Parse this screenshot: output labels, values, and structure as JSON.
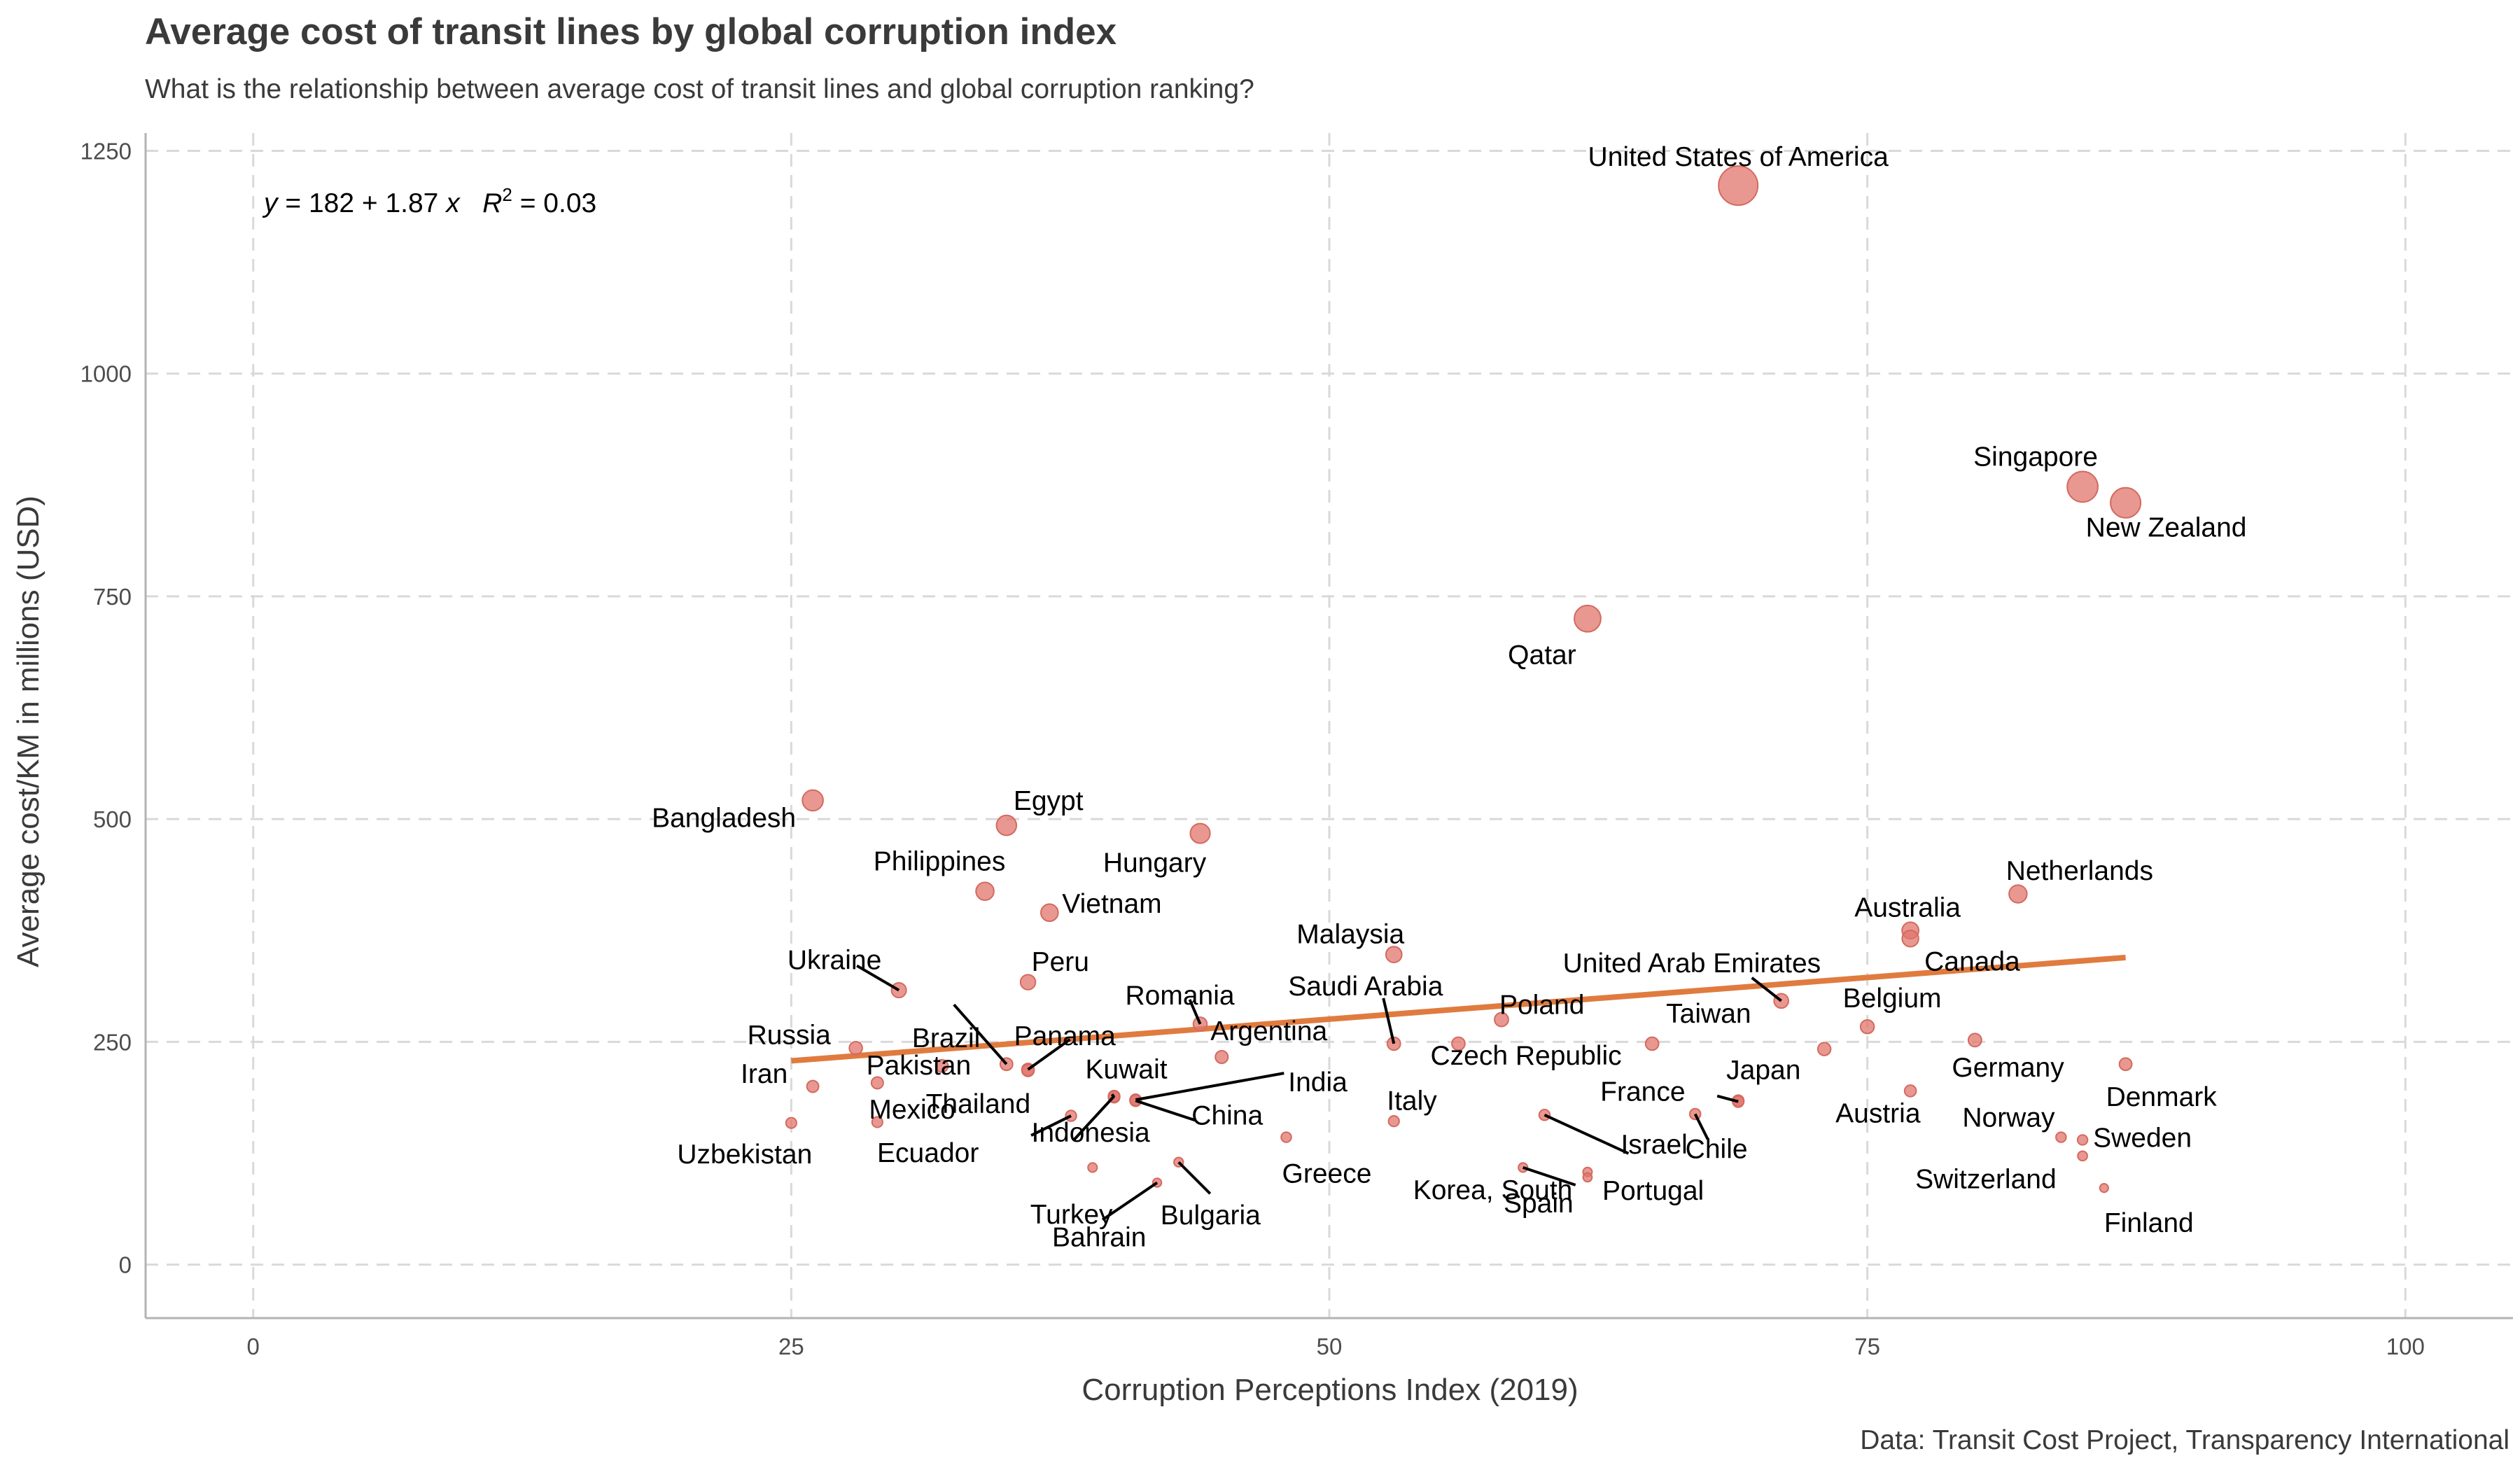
{
  "title": "Average cost of transit lines by global corruption index",
  "subtitle": "What is the relationship between average cost of transit lines and global corruption ranking?",
  "caption": "Data: Transit Cost Project, Transparency International",
  "equation": {
    "y": "y",
    "equals": " = 182 + 1.87 ",
    "x": "x",
    "r2": "R",
    "sup": "2",
    "r2_value": " = 0.03"
  },
  "chart_data": {
    "type": "scatter",
    "xlabel": "Corruption Perceptions Index (2019)",
    "ylabel": "Average cost/KM in millions (USD)",
    "xlim": [
      -5,
      105
    ],
    "ylim": [
      -60,
      1270
    ],
    "xticks": [
      0,
      25,
      50,
      75,
      100
    ],
    "yticks": [
      0,
      250,
      500,
      750,
      1000,
      1250
    ],
    "grid": true,
    "colors": {
      "points": "#e0756b",
      "trend": "#e07b3f",
      "grid": "#d9d9d9",
      "axis": "#b3b3b3"
    },
    "trendline": {
      "intercept": 182,
      "slope": 1.87,
      "x_range": [
        25,
        87
      ]
    },
    "points": [
      {
        "name": "United States of America",
        "x": 69,
        "y": 1211
      },
      {
        "name": "Singapore",
        "x": 85,
        "y": 873
      },
      {
        "name": "New Zealand",
        "x": 87,
        "y": 855
      },
      {
        "name": "Qatar",
        "x": 62,
        "y": 725
      },
      {
        "name": "Bangladesh",
        "x": 26,
        "y": 521
      },
      {
        "name": "Egypt",
        "x": 35,
        "y": 493
      },
      {
        "name": "Hungary",
        "x": 44,
        "y": 484
      },
      {
        "name": "Philippines",
        "x": 34,
        "y": 419
      },
      {
        "name": "Vietnam",
        "x": 37,
        "y": 395
      },
      {
        "name": "Netherlands",
        "x": 82,
        "y": 416
      },
      {
        "name": "Australia",
        "x": 77,
        "y": 375
      },
      {
        "name": "Canada",
        "x": 77,
        "y": 366
      },
      {
        "name": "Malaysia",
        "x": 53,
        "y": 348
      },
      {
        "name": "Peru",
        "x": 36,
        "y": 317
      },
      {
        "name": "Ukraine",
        "x": 30,
        "y": 308
      },
      {
        "name": "United Arab Emirates",
        "x": 71,
        "y": 296
      },
      {
        "name": "Poland",
        "x": 58,
        "y": 275
      },
      {
        "name": "Romania",
        "x": 44,
        "y": 270
      },
      {
        "name": "Belgium",
        "x": 75,
        "y": 267
      },
      {
        "name": "Germany",
        "x": 80,
        "y": 252
      },
      {
        "name": "Saudi Arabia",
        "x": 53,
        "y": 248
      },
      {
        "name": "Czech Republic",
        "x": 56,
        "y": 248
      },
      {
        "name": "Taiwan",
        "x": 65,
        "y": 248
      },
      {
        "name": "Russia",
        "x": 28,
        "y": 243
      },
      {
        "name": "",
        "x": 73,
        "y": 242
      },
      {
        "name": "Argentina",
        "x": 45,
        "y": 233
      },
      {
        "name": "Denmark",
        "x": 87,
        "y": 225
      },
      {
        "name": "Brazil",
        "x": 35,
        "y": 225
      },
      {
        "name": "Pakistan",
        "x": 32,
        "y": 223
      },
      {
        "name": "Panama",
        "x": 36,
        "y": 219
      },
      {
        "name": "Thailand",
        "x": 36,
        "y": 218
      },
      {
        "name": "Iran",
        "x": 26,
        "y": 200
      },
      {
        "name": "",
        "x": 29,
        "y": 204
      },
      {
        "name": "Austria",
        "x": 77,
        "y": 195
      },
      {
        "name": "Kuwait",
        "x": 40,
        "y": 188
      },
      {
        "name": "India",
        "x": 41,
        "y": 185
      },
      {
        "name": "China",
        "x": 41,
        "y": 184
      },
      {
        "name": "Japan",
        "x": 69,
        "y": 184
      },
      {
        "name": "France",
        "x": 69,
        "y": 183
      },
      {
        "name": "Chile",
        "x": 67,
        "y": 169
      },
      {
        "name": "Israel",
        "x": 60,
        "y": 168
      },
      {
        "name": "Ecuador",
        "x": 38,
        "y": 167
      },
      {
        "name": "Italy",
        "x": 53,
        "y": 161
      },
      {
        "name": "Mexico",
        "x": 29,
        "y": 160
      },
      {
        "name": "Uzbekistan",
        "x": 25,
        "y": 159
      },
      {
        "name": "Greece",
        "x": 48,
        "y": 143
      },
      {
        "name": "Norway",
        "x": 84,
        "y": 143
      },
      {
        "name": "Sweden",
        "x": 85,
        "y": 140
      },
      {
        "name": "Switzerland",
        "x": 85,
        "y": 122
      },
      {
        "name": "Indonesia",
        "x": 40,
        "y": 189
      },
      {
        "name": "Bulgaria",
        "x": 43,
        "y": 115
      },
      {
        "name": "Turkey",
        "x": 39,
        "y": 109
      },
      {
        "name": "Korea, South",
        "x": 59,
        "y": 109
      },
      {
        "name": "Portugal",
        "x": 62,
        "y": 104
      },
      {
        "name": "Spain",
        "x": 62,
        "y": 98
      },
      {
        "name": "Bahrain",
        "x": 42,
        "y": 92
      },
      {
        "name": "Finland",
        "x": 86,
        "y": 86
      }
    ]
  }
}
